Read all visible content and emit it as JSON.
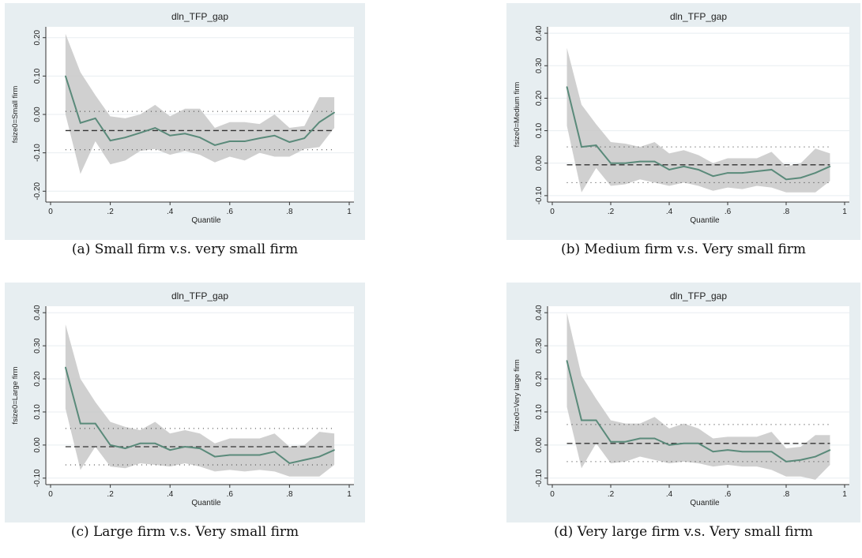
{
  "captions": [
    "(a) Small firm v.s. very small firm",
    "(b) Medium firm v.s. Very small firm",
    "(c) Large firm v.s. Very small firm",
    "(d) Very large firm v.s. Very small firm"
  ],
  "chart_data": [
    {
      "type": "line",
      "title": "dln_TFP_gap",
      "xlabel": "Quantile",
      "ylabel": "fsize0=Small firm",
      "xlim": [
        0,
        1
      ],
      "ylim": [
        -0.22,
        0.22
      ],
      "xticks": [
        "0",
        ".2",
        ".4",
        ".6",
        ".8",
        "1"
      ],
      "yticks": [
        "-0.20",
        "-0.10",
        "0.00",
        "0.10",
        "0.20"
      ],
      "x": [
        0.05,
        0.1,
        0.15,
        0.2,
        0.25,
        0.3,
        0.35,
        0.4,
        0.45,
        0.5,
        0.55,
        0.6,
        0.65,
        0.7,
        0.75,
        0.8,
        0.85,
        0.9,
        0.95
      ],
      "estimate": [
        0.1,
        -0.022,
        -0.01,
        -0.068,
        -0.06,
        -0.048,
        -0.035,
        -0.055,
        -0.05,
        -0.06,
        -0.08,
        -0.07,
        -0.07,
        -0.062,
        -0.055,
        -0.072,
        -0.062,
        -0.02,
        0.005
      ],
      "ci_upper": [
        0.21,
        0.11,
        0.05,
        -0.005,
        -0.01,
        0.0,
        0.025,
        -0.005,
        0.015,
        0.015,
        -0.035,
        -0.02,
        -0.02,
        -0.025,
        0.0,
        -0.035,
        -0.03,
        0.045,
        0.045
      ],
      "ci_lower": [
        0.0,
        -0.155,
        -0.07,
        -0.13,
        -0.12,
        -0.095,
        -0.09,
        -0.105,
        -0.095,
        -0.105,
        -0.125,
        -0.11,
        -0.12,
        -0.1,
        -0.11,
        -0.11,
        -0.09,
        -0.085,
        -0.035
      ],
      "ols_estimate": -0.042,
      "ols_ci": [
        -0.092,
        0.008
      ]
    },
    {
      "type": "line",
      "title": "dln_TFP_gap",
      "xlabel": "Quantile",
      "ylabel": "fsize0=Medium firm",
      "xlim": [
        0,
        1
      ],
      "ylim": [
        -0.11,
        0.41
      ],
      "xticks": [
        "0",
        ".2",
        ".4",
        ".6",
        ".8",
        "1"
      ],
      "yticks": [
        "-0.10",
        "0.00",
        "0.10",
        "0.20",
        "0.30",
        "0.40"
      ],
      "x": [
        0.05,
        0.1,
        0.15,
        0.2,
        0.25,
        0.3,
        0.35,
        0.4,
        0.45,
        0.5,
        0.55,
        0.6,
        0.65,
        0.7,
        0.75,
        0.8,
        0.85,
        0.9,
        0.95
      ],
      "estimate": [
        0.235,
        0.05,
        0.055,
        0.0,
        0.0,
        0.005,
        0.005,
        -0.02,
        -0.01,
        -0.02,
        -0.04,
        -0.03,
        -0.03,
        -0.025,
        -0.02,
        -0.05,
        -0.045,
        -0.03,
        -0.01
      ],
      "ci_upper": [
        0.355,
        0.18,
        0.12,
        0.065,
        0.06,
        0.05,
        0.065,
        0.03,
        0.04,
        0.025,
        0.0,
        0.015,
        0.015,
        0.015,
        0.035,
        -0.01,
        0.0,
        0.045,
        0.03
      ],
      "ci_lower": [
        0.115,
        -0.09,
        -0.015,
        -0.07,
        -0.065,
        -0.05,
        -0.06,
        -0.07,
        -0.06,
        -0.07,
        -0.085,
        -0.075,
        -0.08,
        -0.07,
        -0.075,
        -0.09,
        -0.09,
        -0.09,
        -0.055
      ],
      "ols_estimate": -0.005,
      "ols_ci": [
        -0.06,
        0.05
      ]
    },
    {
      "type": "line",
      "title": "dln_TFP_gap",
      "xlabel": "Quantile",
      "ylabel": "fsize0=Large firm",
      "xlim": [
        0,
        1
      ],
      "ylim": [
        -0.11,
        0.41
      ],
      "xticks": [
        "0",
        ".2",
        ".4",
        ".6",
        ".8",
        "1"
      ],
      "yticks": [
        "-0.10",
        "0.00",
        "0.10",
        "0.20",
        "0.30",
        "0.40"
      ],
      "x": [
        0.05,
        0.1,
        0.15,
        0.2,
        0.25,
        0.3,
        0.35,
        0.4,
        0.45,
        0.5,
        0.55,
        0.6,
        0.65,
        0.7,
        0.75,
        0.8,
        0.85,
        0.9,
        0.95
      ],
      "estimate": [
        0.235,
        0.065,
        0.065,
        0.0,
        -0.01,
        0.005,
        0.005,
        -0.015,
        -0.005,
        -0.01,
        -0.035,
        -0.03,
        -0.03,
        -0.03,
        -0.02,
        -0.055,
        -0.045,
        -0.035,
        -0.015
      ],
      "ci_upper": [
        0.365,
        0.2,
        0.13,
        0.07,
        0.055,
        0.045,
        0.07,
        0.035,
        0.045,
        0.035,
        0.005,
        0.02,
        0.02,
        0.02,
        0.035,
        -0.005,
        0.0,
        0.04,
        0.035
      ],
      "ci_lower": [
        0.11,
        -0.075,
        -0.005,
        -0.065,
        -0.07,
        -0.055,
        -0.06,
        -0.065,
        -0.055,
        -0.065,
        -0.08,
        -0.075,
        -0.08,
        -0.075,
        -0.08,
        -0.095,
        -0.095,
        -0.095,
        -0.06
      ],
      "ols_estimate": -0.005,
      "ols_ci": [
        -0.06,
        0.05
      ]
    },
    {
      "type": "line",
      "title": "dln_TFP_gap",
      "xlabel": "Quantile",
      "ylabel": "fsize0=Very large firm",
      "xlim": [
        0,
        1
      ],
      "ylim": [
        -0.11,
        0.41
      ],
      "xticks": [
        "0",
        ".2",
        ".4",
        ".6",
        ".8",
        "1"
      ],
      "yticks": [
        "-0.10",
        "0.00",
        "0.10",
        "0.20",
        "0.30",
        "0.40"
      ],
      "x": [
        0.05,
        0.1,
        0.15,
        0.2,
        0.25,
        0.3,
        0.35,
        0.4,
        0.45,
        0.5,
        0.55,
        0.6,
        0.65,
        0.7,
        0.75,
        0.8,
        0.85,
        0.9,
        0.95
      ],
      "estimate": [
        0.255,
        0.075,
        0.075,
        0.01,
        0.01,
        0.02,
        0.02,
        0.0,
        0.005,
        0.005,
        -0.02,
        -0.015,
        -0.02,
        -0.02,
        -0.02,
        -0.05,
        -0.045,
        -0.035,
        -0.015
      ],
      "ci_upper": [
        0.4,
        0.21,
        0.14,
        0.075,
        0.065,
        0.065,
        0.085,
        0.05,
        0.065,
        0.05,
        0.02,
        0.025,
        0.025,
        0.025,
        0.04,
        -0.01,
        -0.005,
        0.03,
        0.03
      ],
      "ci_lower": [
        0.115,
        -0.07,
        0.005,
        -0.055,
        -0.05,
        -0.035,
        -0.045,
        -0.055,
        -0.05,
        -0.055,
        -0.065,
        -0.06,
        -0.065,
        -0.065,
        -0.075,
        -0.095,
        -0.095,
        -0.105,
        -0.06
      ],
      "ols_estimate": 0.005,
      "ols_ci": [
        -0.05,
        0.062
      ]
    }
  ]
}
